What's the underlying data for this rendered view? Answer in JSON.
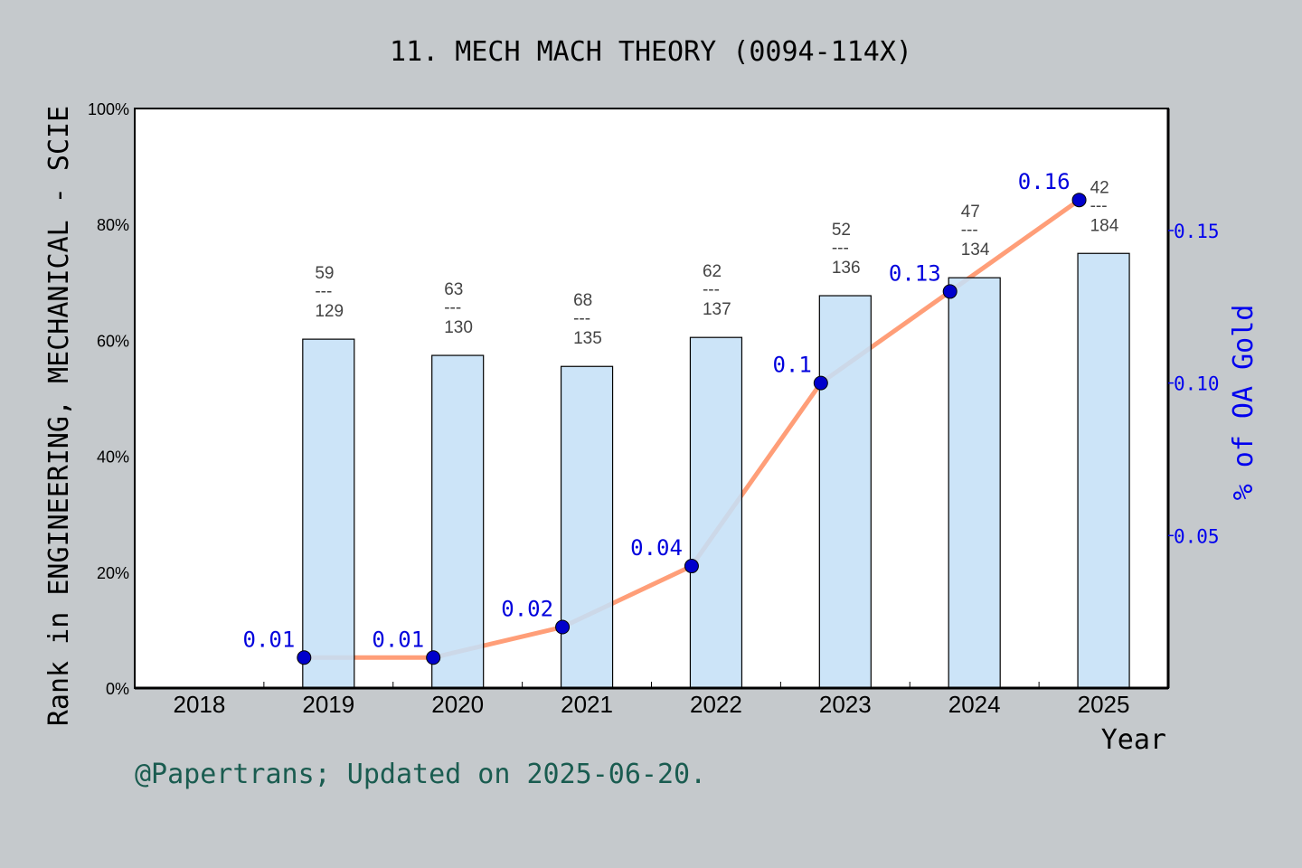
{
  "chart_data": {
    "type": "bar+line",
    "title": "11. MECH MACH THEORY (0094-114X)",
    "xlabel": "Year",
    "ylabel": "Rank in ENGINEERING, MECHANICAL - SCIE",
    "y2label": "% of OA Gold",
    "categories": [
      "2018",
      "2019",
      "2020",
      "2021",
      "2022",
      "2023",
      "2024",
      "2025"
    ],
    "ylim": [
      0,
      100
    ],
    "yticks": [
      "0%",
      "20%",
      "40%",
      "60%",
      "80%",
      "100%"
    ],
    "y2lim": [
      0,
      0.19
    ],
    "y2ticks": [
      "0.05",
      "0.10",
      "0.15"
    ],
    "bars": {
      "values": [
        null,
        60.2,
        57.4,
        55.5,
        60.5,
        67.7,
        70.8,
        75.0
      ],
      "rank_labels": [
        null,
        {
          "rank": "59",
          "total": "129"
        },
        {
          "rank": "63",
          "total": "130"
        },
        {
          "rank": "68",
          "total": "135"
        },
        {
          "rank": "62",
          "total": "137"
        },
        {
          "rank": "52",
          "total": "136"
        },
        {
          "rank": "47",
          "total": "134"
        },
        {
          "rank": "42",
          "total": "184"
        }
      ],
      "color": "#c5e0f7"
    },
    "line": {
      "values": [
        null,
        0.01,
        0.01,
        0.02,
        0.04,
        0.1,
        0.13,
        0.16
      ],
      "labels": [
        null,
        "0.01",
        "0.01",
        "0.02",
        "0.04",
        "0.1",
        "0.13",
        "0.16"
      ],
      "color": "#ff9e78",
      "marker_color": "#0000cc"
    },
    "grid": false,
    "footer": "@Papertrans; Updated on 2025-06-20."
  }
}
